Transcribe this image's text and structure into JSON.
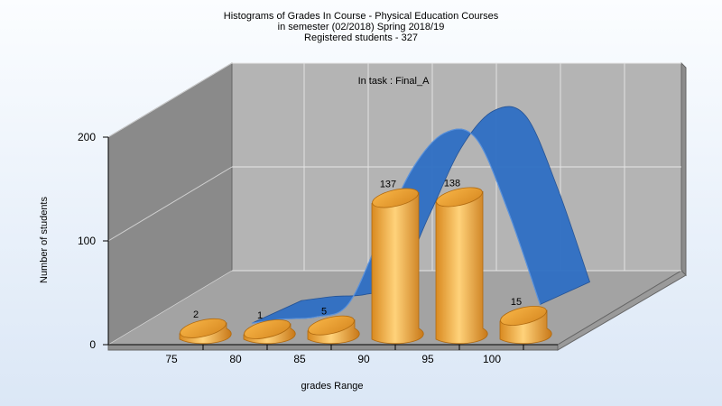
{
  "chart_data": {
    "type": "bar",
    "title_lines": [
      "Histograms of Grades  In Course - Physical Education Courses",
      "in semester  (02/2018) Spring 2018/19",
      "Registered students - 327"
    ],
    "annotation": "In task : Final_A",
    "xlabel": "grades Range",
    "ylabel": "Number of students",
    "categories": [
      "75",
      "80",
      "85",
      "90",
      "95",
      "100"
    ],
    "values": [
      2,
      1,
      5,
      137,
      138,
      15
    ],
    "yticks": [
      0,
      100,
      200
    ],
    "ylim": [
      0,
      200
    ],
    "grid": true,
    "series_colors": {
      "bars": "#f0a030",
      "curve": "#2f6fc4"
    },
    "distribution_curve": {
      "x": [
        80,
        82.5,
        85,
        87.5,
        90,
        92.5,
        95,
        97.5,
        100,
        102.5
      ],
      "y": [
        12,
        16,
        18,
        30,
        95,
        160,
        195,
        190,
        120,
        30
      ]
    }
  }
}
